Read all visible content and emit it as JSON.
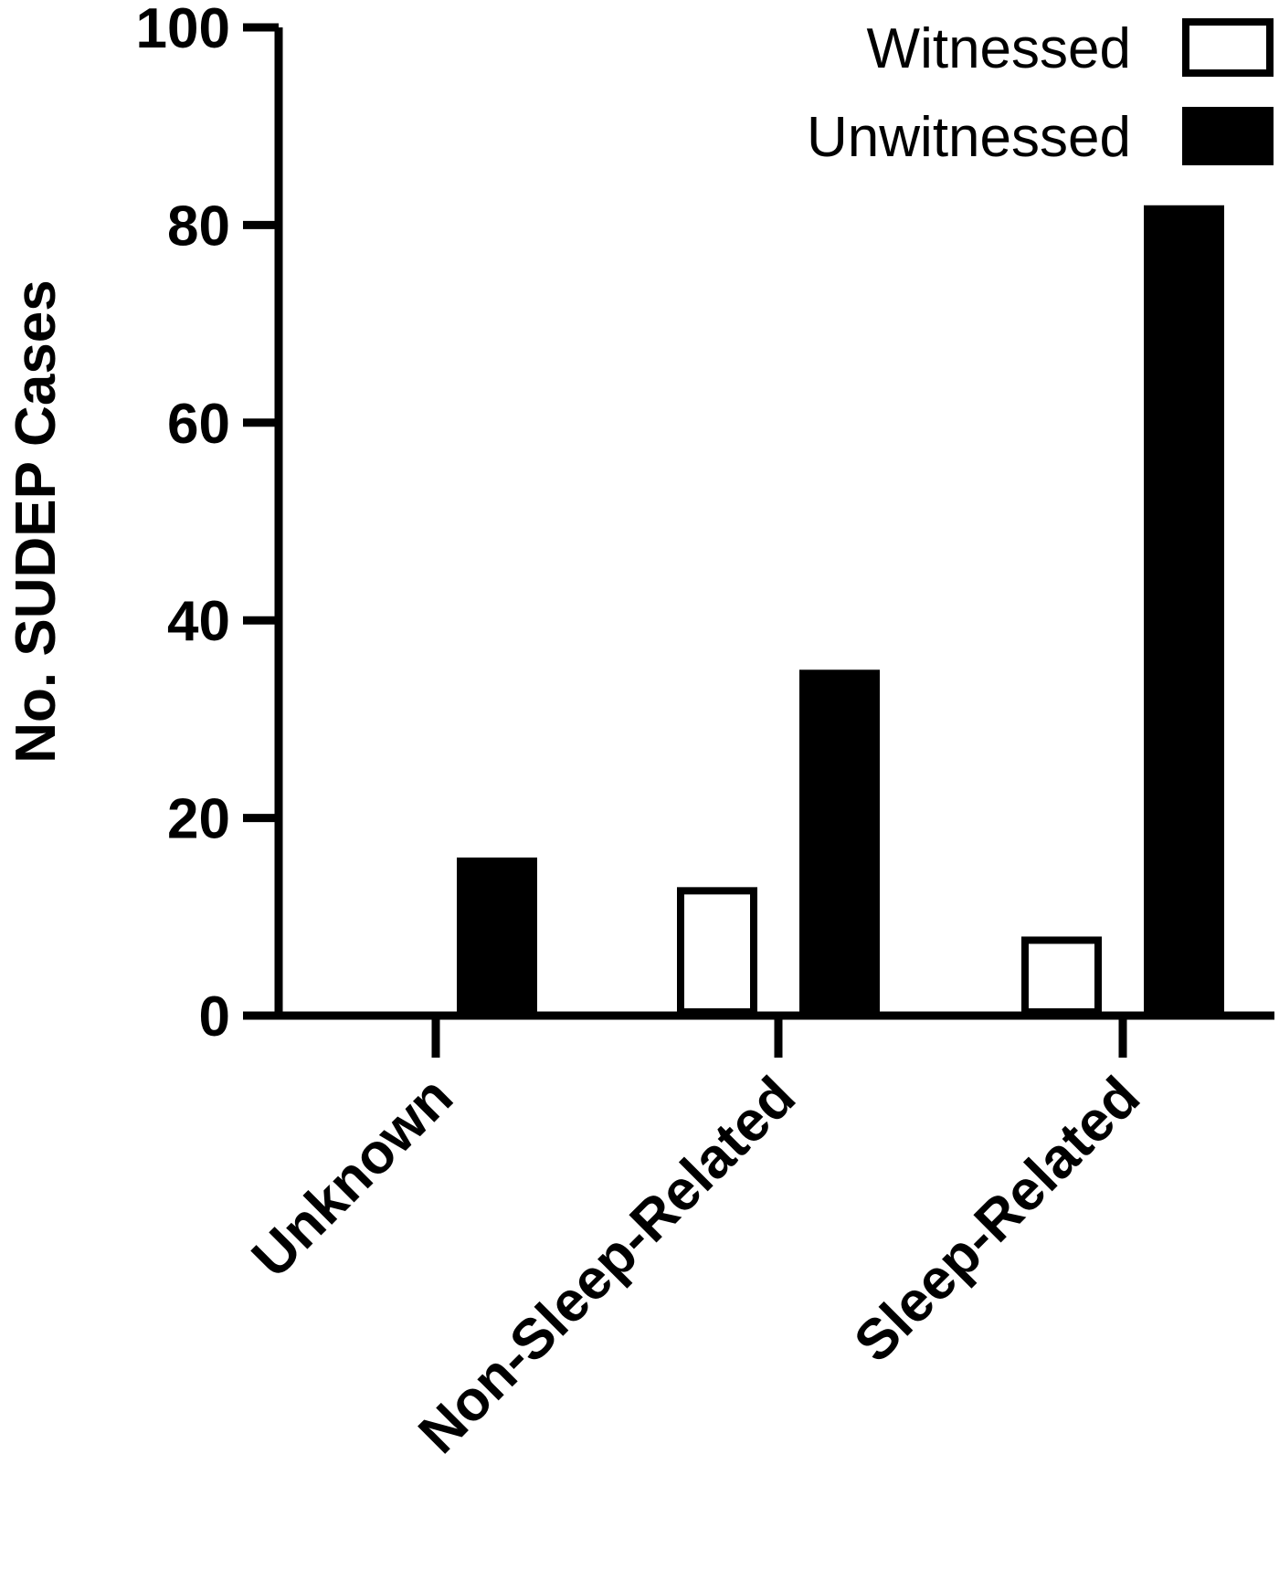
{
  "chart_data": {
    "type": "bar",
    "categories": [
      "Unknown",
      "Non-Sleep-Related",
      "Sleep-Related"
    ],
    "series": [
      {
        "name": "Witnessed",
        "values": [
          0,
          13,
          8
        ],
        "fill": "#ffffff",
        "stroke": "#000000"
      },
      {
        "name": "Unwitnessed",
        "values": [
          16,
          35,
          82
        ],
        "fill": "#000000",
        "stroke": "#000000"
      }
    ],
    "ylabel": "No. SUDEP Cases",
    "xlabel": "",
    "ylim": [
      0,
      100
    ],
    "yticks": [
      0,
      20,
      40,
      60,
      80,
      100
    ],
    "grid": false,
    "legend_position": "top-right"
  }
}
